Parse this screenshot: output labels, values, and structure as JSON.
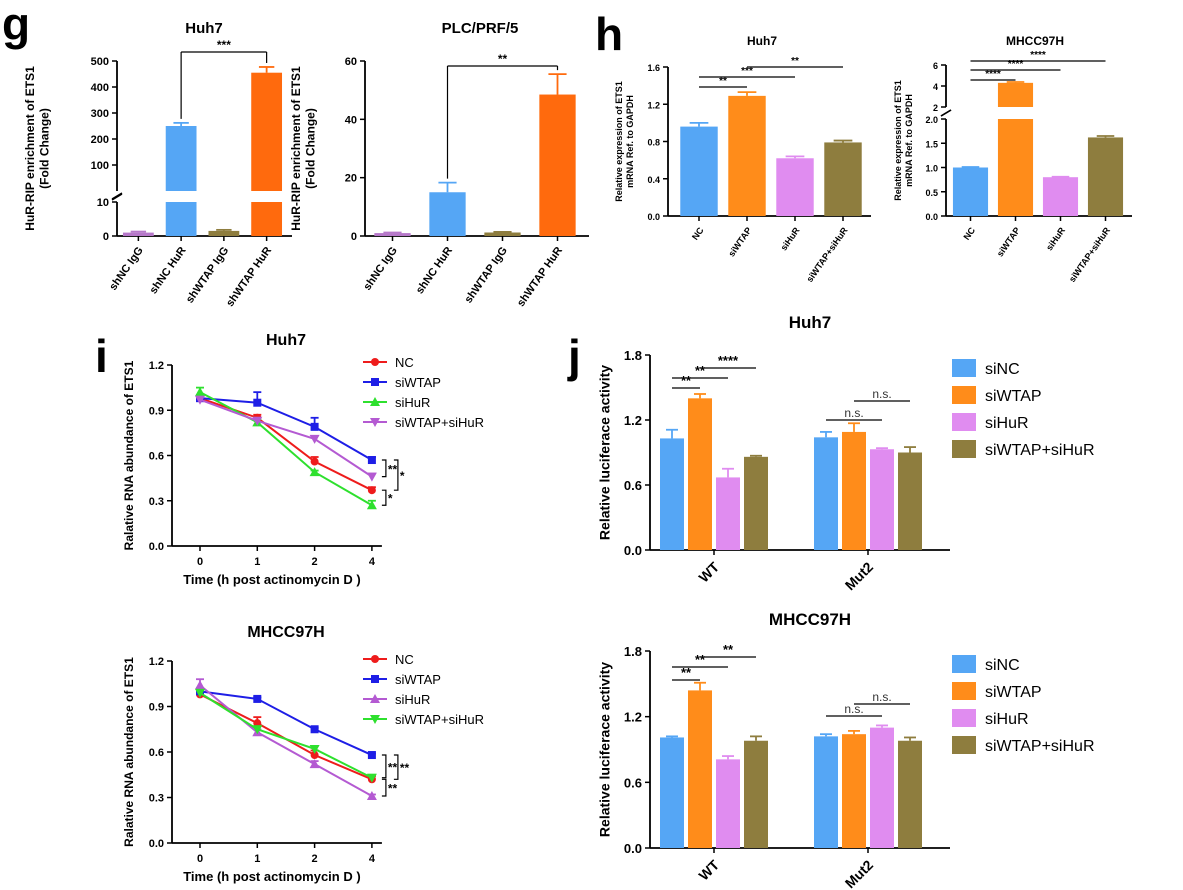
{
  "panels": [
    {
      "letter": "g"
    },
    {
      "letter": "h"
    },
    {
      "letter": "i"
    },
    {
      "letter": "j"
    }
  ],
  "chart_data": [
    {
      "id": "g1",
      "type": "bar",
      "title": "Huh7",
      "ylabel": "HuR-RIP enrichment of ETS1\n(Fold Change)",
      "categories": [
        "shNC IgG",
        "shNC HuR",
        "shWTAP IgG",
        "shWTAP HuR"
      ],
      "values": [
        1,
        250,
        1.5,
        455
      ],
      "errors": [
        0.3,
        12,
        0.3,
        22
      ],
      "colors": [
        "#b678c9",
        "#55a6f5",
        "#8e7d3e",
        "#ff6a0d"
      ],
      "broken_axis": {
        "lower": [
          0,
          10
        ],
        "upper": [
          0,
          500
        ]
      },
      "y_ticks_lower": [
        "0",
        "10"
      ],
      "y_ticks_upper": [
        "100",
        "200",
        "300",
        "400",
        "500"
      ],
      "significance": [
        {
          "from": 1,
          "to": 3,
          "label": "***"
        }
      ]
    },
    {
      "id": "g2",
      "type": "bar",
      "title": "PLC/PRF/5",
      "ylabel": "HuR-RIP enrichment of ETS1\n(Fold Change)",
      "categories": [
        "shNC IgG",
        "shNC HuR",
        "shWTAP IgG",
        "shWTAP HuR"
      ],
      "values": [
        1,
        15,
        1.2,
        48.5
      ],
      "errors": [
        0.2,
        3.3,
        0.2,
        7
      ],
      "colors": [
        "#b678c9",
        "#55a6f5",
        "#8e7d3e",
        "#ff6a0d"
      ],
      "ylim": [
        0,
        60
      ],
      "y_ticks": [
        "0",
        "20",
        "40",
        "60"
      ],
      "significance": [
        {
          "from": 1,
          "to": 3,
          "label": "**"
        }
      ]
    },
    {
      "id": "h1",
      "type": "bar",
      "title": "Huh7",
      "ylabel": "Relative expression of ETS1\nmRNA Ref. to GAPDH",
      "categories": [
        "NC",
        "siWTAP",
        "siHuR",
        "siWTAP+siHuR"
      ],
      "values": [
        0.96,
        1.29,
        0.62,
        0.79
      ],
      "errors": [
        0.04,
        0.04,
        0.02,
        0.02
      ],
      "colors": [
        "#55a6f5",
        "#ff8c1a",
        "#e08cf0",
        "#8e7d3e"
      ],
      "ylim": [
        0,
        1.6
      ],
      "y_ticks": [
        "0.0",
        "0.4",
        "0.8",
        "1.2",
        "1.6"
      ],
      "significance": [
        {
          "from": 0,
          "to": 1,
          "label": "**"
        },
        {
          "from": 0,
          "to": 2,
          "label": "***"
        },
        {
          "from": 1,
          "to": 3,
          "label": "**"
        }
      ]
    },
    {
      "id": "h2",
      "type": "bar",
      "title": "MHCC97H",
      "ylabel": "Relative expression of ETS1\nmRNA Ref. to GAPDH",
      "categories": [
        "NC",
        "siWTAP",
        "siHuR",
        "siWTAP+siHuR"
      ],
      "values": [
        1.0,
        4.3,
        0.8,
        1.62
      ],
      "errors": [
        0.01,
        0.08,
        0.01,
        0.03
      ],
      "colors": [
        "#55a6f5",
        "#ff8c1a",
        "#e08cf0",
        "#8e7d3e"
      ],
      "broken_axis": {
        "lower": [
          0,
          2
        ],
        "upper": [
          2,
          6
        ]
      },
      "y_ticks_lower": [
        "0.0",
        "0.5",
        "1.0",
        "1.5",
        "2.0"
      ],
      "y_ticks_upper": [
        "2",
        "4",
        "6"
      ],
      "significance": [
        {
          "from": 0,
          "to": 1,
          "label": "****"
        },
        {
          "from": 0,
          "to": 2,
          "label": "****"
        },
        {
          "from": 0,
          "to": 3,
          "label": "****"
        }
      ]
    },
    {
      "id": "i1",
      "type": "line",
      "title": "Huh7",
      "xlabel": "Time (h post actinomycin D )",
      "ylabel": "Ralative RNA abundance of ETS1",
      "x": [
        "0",
        "1",
        "2",
        "4"
      ],
      "ylim": [
        0,
        1.2
      ],
      "y_ticks": [
        "0.0",
        "0.3",
        "0.6",
        "0.9",
        "1.2"
      ],
      "series": [
        {
          "name": "NC",
          "color": "#ee1c1c",
          "marker": "circle",
          "values": [
            0.98,
            0.85,
            0.56,
            0.37
          ],
          "errors": [
            0.02,
            0.02,
            0.03,
            0.02
          ]
        },
        {
          "name": "siWTAP",
          "color": "#1e1ee6",
          "marker": "square",
          "values": [
            0.98,
            0.95,
            0.79,
            0.57
          ],
          "errors": [
            0.02,
            0.07,
            0.06,
            0.02
          ]
        },
        {
          "name": "siHuR",
          "color": "#2ee02e",
          "marker": "triangle-up",
          "values": [
            1.02,
            0.82,
            0.49,
            0.27
          ],
          "errors": [
            0.03,
            0.02,
            0.01,
            0.03
          ]
        },
        {
          "name": "siWTAP+siHuR",
          "color": "#b45ad2",
          "marker": "triangle-down",
          "values": [
            0.97,
            0.83,
            0.71,
            0.46
          ],
          "errors": [
            0.02,
            0.02,
            0.02,
            0.02
          ]
        }
      ],
      "brackets": [
        {
          "label": "**",
          "series": [
            1,
            3
          ]
        },
        {
          "label": "*",
          "series": [
            1,
            0
          ]
        },
        {
          "label": "*",
          "series": [
            0,
            2
          ]
        }
      ]
    },
    {
      "id": "i2",
      "type": "line",
      "title": "MHCC97H",
      "xlabel": "Time (h post actinomycin D )",
      "ylabel": "Ralative RNA abundance of ETS1",
      "x": [
        "0",
        "1",
        "2",
        "4"
      ],
      "ylim": [
        0,
        1.2
      ],
      "y_ticks": [
        "0.0",
        "0.3",
        "0.6",
        "0.9",
        "1.2"
      ],
      "series": [
        {
          "name": "NC",
          "color": "#ee1c1c",
          "marker": "circle",
          "values": [
            0.98,
            0.79,
            0.58,
            0.42
          ],
          "errors": [
            0.02,
            0.04,
            0.03,
            0.02
          ]
        },
        {
          "name": "siWTAP",
          "color": "#1e1ee6",
          "marker": "square",
          "values": [
            1.0,
            0.95,
            0.75,
            0.58
          ],
          "errors": [
            0.02,
            0.01,
            0.01,
            0.01
          ]
        },
        {
          "name": "siHuR",
          "color": "#b45ad2",
          "marker": "triangle-up",
          "values": [
            1.04,
            0.73,
            0.52,
            0.31
          ],
          "errors": [
            0.04,
            0.02,
            0.02,
            0.01
          ]
        },
        {
          "name": "siWTAP+siHuR",
          "color": "#2ee02e",
          "marker": "triangle-down",
          "values": [
            0.99,
            0.75,
            0.62,
            0.43
          ],
          "errors": [
            0.02,
            0.02,
            0.02,
            0.02
          ]
        }
      ],
      "brackets": [
        {
          "label": "**",
          "series": [
            1,
            3
          ]
        },
        {
          "label": "**",
          "series": [
            1,
            0
          ]
        },
        {
          "label": "**",
          "series": [
            0,
            2
          ]
        }
      ]
    },
    {
      "id": "j1",
      "type": "bar",
      "title": "Huh7",
      "ylabel": "Relative luciferace activity",
      "categories": [
        "WT",
        "Mut2"
      ],
      "series": [
        {
          "name": "siNC",
          "color": "#55a6f5",
          "values": [
            1.03,
            1.04
          ],
          "errors": [
            0.08,
            0.05
          ]
        },
        {
          "name": "siWTAP",
          "color": "#ff8c1a",
          "values": [
            1.4,
            1.09
          ],
          "errors": [
            0.04,
            0.08
          ]
        },
        {
          "name": "siHuR",
          "color": "#e08cf0",
          "values": [
            0.67,
            0.93
          ],
          "errors": [
            0.08,
            0.01
          ]
        },
        {
          "name": "siWTAP+siHuR",
          "color": "#8e7d3e",
          "values": [
            0.86,
            0.9
          ],
          "errors": [
            0.01,
            0.05
          ]
        }
      ],
      "ylim": [
        0,
        1.8
      ],
      "y_ticks": [
        "0.0",
        "0.6",
        "1.2",
        "1.8"
      ],
      "significance": [
        {
          "group": 0,
          "from": 0,
          "to": 1,
          "label": "**"
        },
        {
          "group": 0,
          "from": 0,
          "to": 2,
          "label": "**"
        },
        {
          "group": 0,
          "from": 1,
          "to": 3,
          "label": "****"
        },
        {
          "group": 1,
          "from": 0,
          "to": 2,
          "label": "n.s."
        },
        {
          "group": 1,
          "from": 1,
          "to": 3,
          "label": "n.s."
        }
      ]
    },
    {
      "id": "j2",
      "type": "bar",
      "title": "MHCC97H",
      "ylabel": "Relative luciferace activity",
      "categories": [
        "WT",
        "Mut2"
      ],
      "series": [
        {
          "name": "siNC",
          "color": "#55a6f5",
          "values": [
            1.01,
            1.02
          ],
          "errors": [
            0.01,
            0.02
          ]
        },
        {
          "name": "siWTAP",
          "color": "#ff8c1a",
          "values": [
            1.44,
            1.04
          ],
          "errors": [
            0.07,
            0.03
          ]
        },
        {
          "name": "siHuR",
          "color": "#e08cf0",
          "values": [
            0.81,
            1.1
          ],
          "errors": [
            0.03,
            0.02
          ]
        },
        {
          "name": "siWTAP+siHuR",
          "color": "#8e7d3e",
          "values": [
            0.98,
            0.98
          ],
          "errors": [
            0.04,
            0.03
          ]
        }
      ],
      "ylim": [
        0,
        1.8
      ],
      "y_ticks": [
        "0.0",
        "0.6",
        "1.2",
        "1.8"
      ],
      "significance": [
        {
          "group": 0,
          "from": 0,
          "to": 1,
          "label": "**"
        },
        {
          "group": 0,
          "from": 0,
          "to": 2,
          "label": "**"
        },
        {
          "group": 0,
          "from": 1,
          "to": 3,
          "label": "**"
        },
        {
          "group": 1,
          "from": 0,
          "to": 2,
          "label": "n.s."
        },
        {
          "group": 1,
          "from": 1,
          "to": 3,
          "label": "n.s."
        }
      ]
    }
  ]
}
